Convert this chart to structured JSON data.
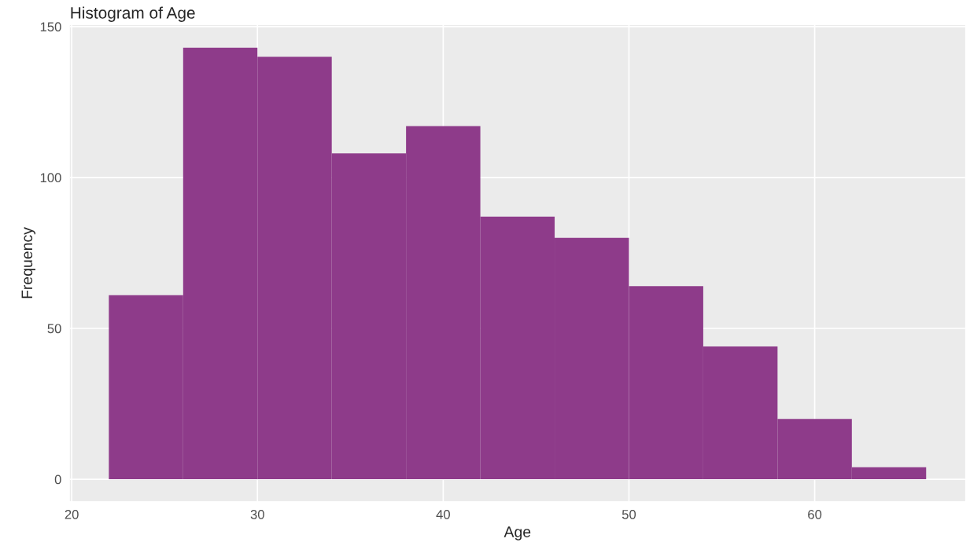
{
  "chart_data": {
    "type": "histogram",
    "title": "Histogram of Age",
    "xlabel": "Age",
    "ylabel": "Frequency",
    "bins": [
      22,
      26,
      30,
      34,
      38,
      42,
      46,
      50,
      54,
      58,
      62,
      66
    ],
    "values": [
      61,
      143,
      140,
      108,
      117,
      87,
      80,
      64,
      44,
      20,
      4
    ],
    "color": "#8e3b8a",
    "xlim": [
      19.9,
      68.1
    ],
    "xticks": [
      20,
      30,
      40,
      50,
      60
    ],
    "ylim": [
      -7.3,
      150.5
    ],
    "yticks": [
      0,
      50,
      100,
      150
    ],
    "grid": true
  }
}
